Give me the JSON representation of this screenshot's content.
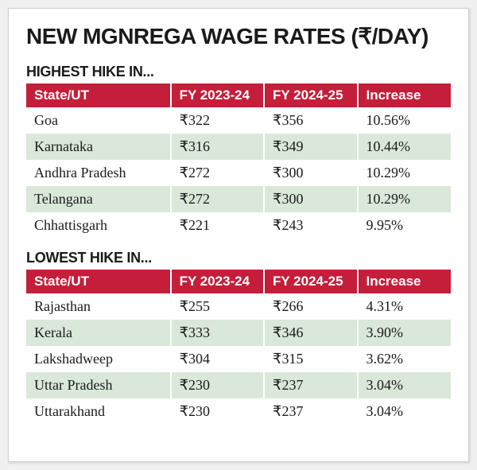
{
  "title": "NEW MGNREGA WAGE RATES (₹/DAY)",
  "colors": {
    "header_bg": "#c41e3a",
    "header_text": "#ffffff",
    "row_odd_bg": "#ffffff",
    "row_even_bg": "#d9e8d9",
    "text": "#1a1a1a",
    "card_bg": "#ffffff",
    "card_border": "#d0d0d0"
  },
  "typography": {
    "title_fontsize": 28,
    "title_weight": 800,
    "section_fontsize": 18,
    "header_cell_fontsize": 17,
    "body_cell_fontsize": 18
  },
  "columns": [
    "State/UT",
    "FY 2023-24",
    "FY 2024-25",
    "Increase"
  ],
  "column_widths_pct": [
    34,
    22,
    22,
    22
  ],
  "highest": {
    "label": "HIGHEST HIKE IN...",
    "rows": [
      {
        "state": "Goa",
        "fy23": "₹322",
        "fy24": "₹356",
        "inc": "10.56%"
      },
      {
        "state": "Karnataka",
        "fy23": "₹316",
        "fy24": "₹349",
        "inc": "10.44%"
      },
      {
        "state": "Andhra Pradesh",
        "fy23": "₹272",
        "fy24": "₹300",
        "inc": "10.29%"
      },
      {
        "state": "Telangana",
        "fy23": "₹272",
        "fy24": "₹300",
        "inc": "10.29%"
      },
      {
        "state": "Chhattisgarh",
        "fy23": "₹221",
        "fy24": "₹243",
        "inc": "9.95%"
      }
    ]
  },
  "lowest": {
    "label": "LOWEST HIKE IN...",
    "rows": [
      {
        "state": "Rajasthan",
        "fy23": "₹255",
        "fy24": "₹266",
        "inc": "4.31%"
      },
      {
        "state": "Kerala",
        "fy23": "₹333",
        "fy24": "₹346",
        "inc": "3.90%"
      },
      {
        "state": "Lakshadweep",
        "fy23": "₹304",
        "fy24": "₹315",
        "inc": "3.62%"
      },
      {
        "state": "Uttar Pradesh",
        "fy23": "₹230",
        "fy24": "₹237",
        "inc": "3.04%"
      },
      {
        "state": "Uttarakhand",
        "fy23": "₹230",
        "fy24": "₹237",
        "inc": "3.04%"
      }
    ]
  }
}
